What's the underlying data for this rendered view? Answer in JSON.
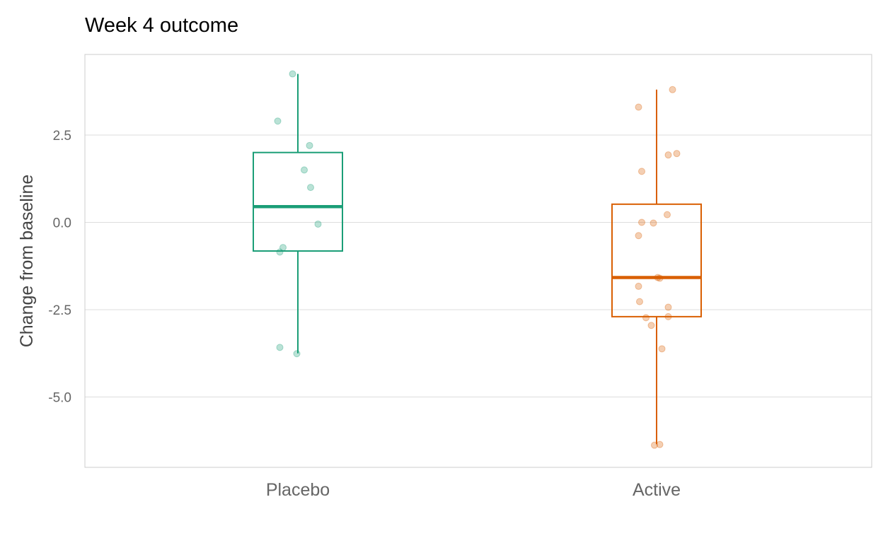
{
  "chart_data": {
    "type": "box",
    "title": "Week 4 outcome",
    "xlabel": "",
    "ylabel": "Change from baseline",
    "ylim": [
      -6.9,
      4.8
    ],
    "yticks": [
      2.5,
      0.0,
      -2.5,
      -5.0
    ],
    "ytick_labels": [
      "2.5",
      "0.0",
      "-2.5",
      "-5.0"
    ],
    "categories": [
      "Placebo",
      "Active"
    ],
    "grid": true,
    "colors": {
      "Placebo": "#1b9e77",
      "Active": "#d95f02"
    },
    "boxes": [
      {
        "category": "Placebo",
        "q1": -0.82,
        "median": 0.45,
        "q3": 2.0,
        "whisker_low": -3.75,
        "whisker_high": 4.25,
        "points": [
          {
            "dx": -0.05,
            "y": 4.25
          },
          {
            "dx": -0.19,
            "y": 2.9
          },
          {
            "dx": 0.11,
            "y": 2.2
          },
          {
            "dx": 0.06,
            "y": 1.5
          },
          {
            "dx": 0.12,
            "y": 1.0
          },
          {
            "dx": 0.19,
            "y": -0.05
          },
          {
            "dx": -0.14,
            "y": -0.72
          },
          {
            "dx": -0.17,
            "y": -0.85
          },
          {
            "dx": -0.17,
            "y": -3.58
          },
          {
            "dx": -0.01,
            "y": -3.76
          }
        ]
      },
      {
        "category": "Active",
        "q1": -2.7,
        "median": -1.58,
        "q3": 0.52,
        "whisker_low": -6.35,
        "whisker_high": 3.8,
        "points": [
          {
            "dx": 0.15,
            "y": 3.8
          },
          {
            "dx": -0.17,
            "y": 3.3
          },
          {
            "dx": 0.19,
            "y": 1.97
          },
          {
            "dx": 0.11,
            "y": 1.93
          },
          {
            "dx": -0.14,
            "y": 1.46
          },
          {
            "dx": 0.1,
            "y": 0.22
          },
          {
            "dx": -0.14,
            "y": 0.0
          },
          {
            "dx": -0.03,
            "y": -0.02
          },
          {
            "dx": -0.17,
            "y": -0.38
          },
          {
            "dx": 0.01,
            "y": -1.58
          },
          {
            "dx": 0.03,
            "y": -1.6
          },
          {
            "dx": -0.17,
            "y": -1.83
          },
          {
            "dx": -0.16,
            "y": -2.27
          },
          {
            "dx": 0.11,
            "y": -2.43
          },
          {
            "dx": 0.11,
            "y": -2.7
          },
          {
            "dx": -0.1,
            "y": -2.73
          },
          {
            "dx": -0.05,
            "y": -2.95
          },
          {
            "dx": 0.05,
            "y": -3.62
          },
          {
            "dx": -0.02,
            "y": -6.38
          },
          {
            "dx": 0.03,
            "y": -6.36
          }
        ]
      }
    ]
  }
}
